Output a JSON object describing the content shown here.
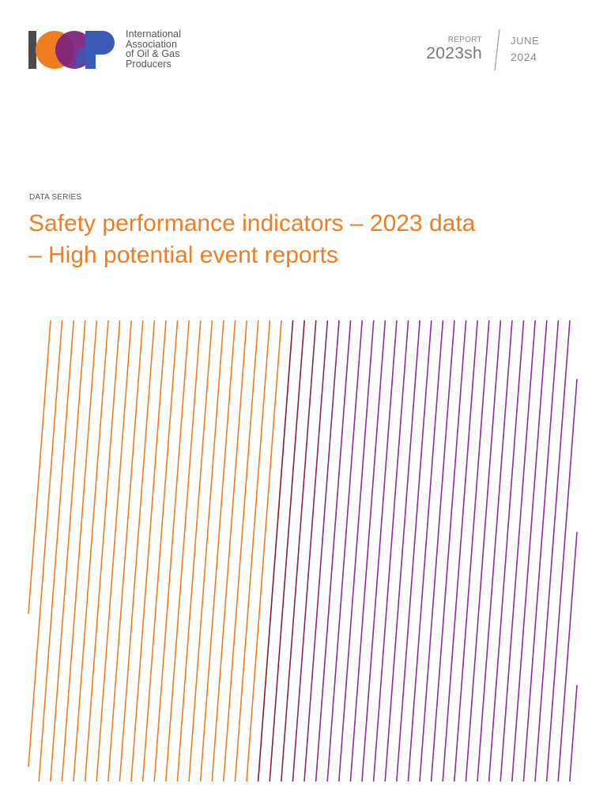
{
  "logo": {
    "name": "IOGP logo",
    "text_lines": [
      "International",
      "Association",
      "of Oil & Gas",
      "Producers"
    ],
    "colors": {
      "grey": "#4a4a4a",
      "orange": "#ef7d22",
      "purple": "#7a1f7e",
      "blue": "#3a5cb6"
    }
  },
  "report": {
    "label": "REPORT",
    "code": "2023sh",
    "month": "JUNE",
    "year": "2024"
  },
  "series_label": "DATA SERIES",
  "title_lines": [
    "Safety performance indicators – 2023 data",
    "– High potential event reports"
  ],
  "colors": {
    "accent_orange": "#ef7d22",
    "stripe_dark_red": "#8b1a2a",
    "stripe_purple": "#8e2c9c",
    "text_grey": "#555555"
  }
}
